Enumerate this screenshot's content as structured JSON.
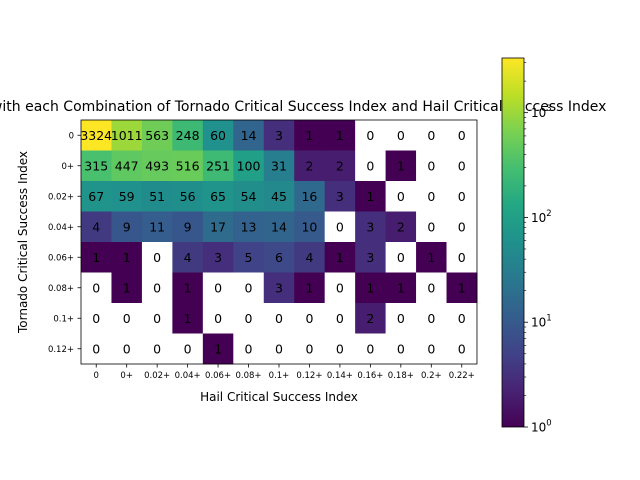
{
  "chart_data": {
    "type": "heatmap",
    "title": "Days with each Combination of Tornado Critical Success Index and Hail Critical Success Index",
    "xlabel": "Hail Critical Success Index",
    "ylabel": "Tornado Critical Success Index",
    "x_categories": [
      "0",
      "0+",
      "0.02+",
      "0.04+",
      "0.06+",
      "0.08+",
      "0.1+",
      "0.12+",
      "0.14+",
      "0.16+",
      "0.18+",
      "0.2+",
      "0.22+"
    ],
    "y_categories": [
      "0",
      "0+",
      "0.02+",
      "0.04+",
      "0.06+",
      "0.08+",
      "0.1+",
      "0.12+"
    ],
    "values": [
      [
        3324,
        1011,
        563,
        248,
        60,
        14,
        3,
        1,
        1,
        0,
        0,
        0,
        0
      ],
      [
        315,
        447,
        493,
        516,
        251,
        100,
        31,
        2,
        2,
        0,
        1,
        0,
        0
      ],
      [
        67,
        59,
        51,
        56,
        65,
        54,
        45,
        16,
        3,
        1,
        0,
        0,
        0
      ],
      [
        4,
        9,
        11,
        9,
        17,
        13,
        14,
        10,
        0,
        3,
        2,
        0,
        0
      ],
      [
        1,
        1,
        0,
        4,
        3,
        5,
        6,
        4,
        1,
        3,
        0,
        1,
        0
      ],
      [
        0,
        1,
        0,
        1,
        0,
        0,
        3,
        1,
        0,
        1,
        1,
        0,
        1
      ],
      [
        0,
        0,
        0,
        1,
        0,
        0,
        0,
        0,
        0,
        2,
        0,
        0,
        0
      ],
      [
        0,
        0,
        0,
        0,
        1,
        0,
        0,
        0,
        0,
        0,
        0,
        0,
        0
      ]
    ],
    "colormap": "viridis",
    "color_scale": "log",
    "colorbar": {
      "range": [
        1,
        3324
      ],
      "tick_values": [
        1,
        10,
        100,
        1000
      ],
      "tick_bases": [
        "10",
        "10",
        "10",
        "10"
      ],
      "tick_exponents": [
        "0",
        "1",
        "2",
        "3"
      ]
    },
    "zero_cell_color": "#ffffff"
  }
}
